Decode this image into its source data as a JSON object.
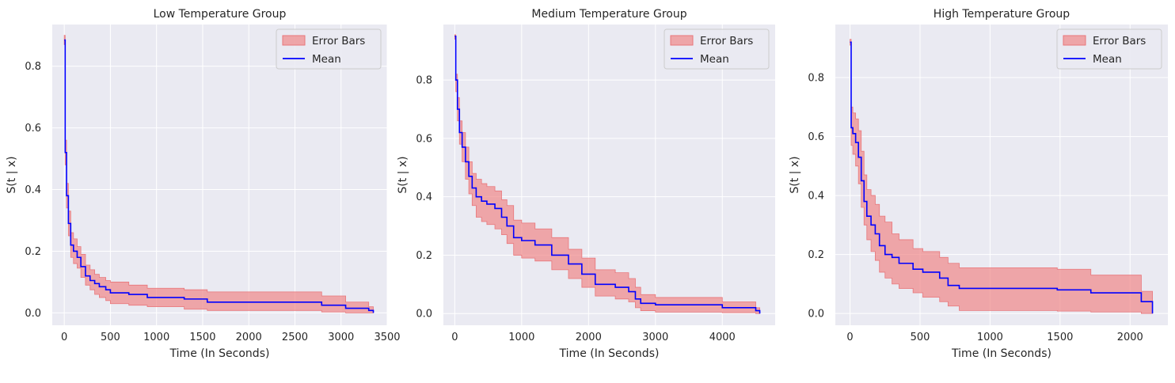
{
  "style": {
    "plot_background": "#eaeaf2",
    "grid_color": "#ffffff",
    "band_fill": "#f08080",
    "band_stroke": "#e8767a",
    "mean_color": "#0000ff"
  },
  "chart_data": [
    {
      "type": "line",
      "title": "Low Temperature Group",
      "xlabel": "Time (In Seconds)",
      "ylabel": "S(t | x)",
      "xlim": [
        -130,
        3500
      ],
      "ylim": [
        -0.04,
        0.935
      ],
      "xticks": [
        0,
        500,
        1000,
        1500,
        2000,
        2500,
        3000,
        3500
      ],
      "yticks": [
        0.0,
        0.2,
        0.4,
        0.6,
        0.8
      ],
      "ytick_labels": [
        "0.0",
        "0.2",
        "0.4",
        "0.6",
        "0.8"
      ],
      "grid": true,
      "legend": {
        "placement": "top-right",
        "entries": [
          "Error Bars",
          "Mean"
        ]
      },
      "series": [
        {
          "name": "Mean",
          "x": [
            0,
            10,
            25,
            45,
            70,
            100,
            140,
            180,
            230,
            280,
            330,
            380,
            450,
            500,
            700,
            900,
            1300,
            1550,
            2790,
            3050,
            3300,
            3350
          ],
          "y": [
            0.885,
            0.52,
            0.38,
            0.29,
            0.22,
            0.2,
            0.18,
            0.15,
            0.12,
            0.105,
            0.095,
            0.085,
            0.075,
            0.065,
            0.06,
            0.05,
            0.045,
            0.035,
            0.025,
            0.015,
            0.008,
            0.0
          ]
        },
        {
          "name": "Error Bars",
          "x": [
            0,
            10,
            25,
            45,
            70,
            100,
            140,
            180,
            230,
            280,
            330,
            380,
            450,
            500,
            700,
            900,
            1300,
            1550,
            2790,
            3050,
            3300,
            3350
          ],
          "upper": [
            0.9,
            0.56,
            0.42,
            0.33,
            0.26,
            0.24,
            0.215,
            0.19,
            0.155,
            0.14,
            0.125,
            0.115,
            0.105,
            0.1,
            0.09,
            0.08,
            0.075,
            0.068,
            0.055,
            0.035,
            0.02,
            0.01
          ],
          "lower": [
            0.87,
            0.48,
            0.34,
            0.25,
            0.18,
            0.16,
            0.145,
            0.115,
            0.09,
            0.075,
            0.06,
            0.05,
            0.04,
            0.03,
            0.025,
            0.02,
            0.012,
            0.008,
            0.003,
            0.0,
            0.0,
            0.0
          ]
        }
      ]
    },
    {
      "type": "line",
      "title": "Medium Temperature Group",
      "xlabel": "Time (In Seconds)",
      "ylabel": "S(t | x)",
      "xlim": [
        -170,
        4790
      ],
      "ylim": [
        -0.04,
        0.99
      ],
      "xticks": [
        0,
        1000,
        2000,
        3000,
        4000
      ],
      "yticks": [
        0.0,
        0.2,
        0.4,
        0.6,
        0.8
      ],
      "ytick_labels": [
        "0.0",
        "0.2",
        "0.4",
        "0.6",
        "0.8"
      ],
      "grid": true,
      "legend": {
        "placement": "top-right",
        "entries": [
          "Error Bars",
          "Mean"
        ]
      },
      "series": [
        {
          "name": "Mean",
          "x": [
            0,
            15,
            40,
            70,
            110,
            160,
            210,
            260,
            320,
            400,
            480,
            600,
            700,
            780,
            880,
            1000,
            1200,
            1450,
            1700,
            1900,
            2100,
            2400,
            2600,
            2700,
            2780,
            3000,
            4000,
            4500,
            4560
          ],
          "y": [
            0.95,
            0.8,
            0.7,
            0.62,
            0.57,
            0.52,
            0.47,
            0.43,
            0.4,
            0.385,
            0.375,
            0.36,
            0.33,
            0.3,
            0.26,
            0.25,
            0.235,
            0.2,
            0.17,
            0.135,
            0.1,
            0.09,
            0.075,
            0.05,
            0.035,
            0.03,
            0.02,
            0.01,
            0.0
          ]
        },
        {
          "name": "Error Bars",
          "x": [
            0,
            15,
            40,
            70,
            110,
            160,
            210,
            260,
            320,
            400,
            480,
            600,
            700,
            780,
            880,
            1000,
            1200,
            1450,
            1700,
            1900,
            2100,
            2400,
            2600,
            2700,
            2780,
            3000,
            4000,
            4500,
            4560
          ],
          "upper": [
            0.955,
            0.82,
            0.74,
            0.66,
            0.62,
            0.57,
            0.52,
            0.48,
            0.46,
            0.445,
            0.435,
            0.42,
            0.39,
            0.37,
            0.32,
            0.31,
            0.29,
            0.26,
            0.22,
            0.19,
            0.15,
            0.14,
            0.12,
            0.09,
            0.065,
            0.055,
            0.04,
            0.02,
            0.01
          ],
          "lower": [
            0.94,
            0.76,
            0.66,
            0.58,
            0.52,
            0.46,
            0.41,
            0.37,
            0.33,
            0.315,
            0.305,
            0.29,
            0.27,
            0.24,
            0.2,
            0.19,
            0.18,
            0.15,
            0.12,
            0.09,
            0.06,
            0.05,
            0.04,
            0.02,
            0.01,
            0.005,
            0.003,
            0.0,
            0.0
          ]
        }
      ]
    },
    {
      "type": "line",
      "title": "High Temperature Group",
      "xlabel": "Time (In Seconds)",
      "ylabel": "S(t | x)",
      "xlim": [
        -105,
        2270
      ],
      "ylim": [
        -0.04,
        0.98
      ],
      "xticks": [
        0,
        500,
        1000,
        1500,
        2000
      ],
      "yticks": [
        0.0,
        0.2,
        0.4,
        0.6,
        0.8
      ],
      "ytick_labels": [
        "0.0",
        "0.2",
        "0.4",
        "0.6",
        "0.8"
      ],
      "grid": true,
      "legend": {
        "placement": "top-right",
        "entries": [
          "Error Bars",
          "Mean"
        ]
      },
      "series": [
        {
          "name": "Mean",
          "x": [
            0,
            8,
            20,
            40,
            60,
            80,
            100,
            120,
            150,
            180,
            210,
            250,
            300,
            350,
            450,
            520,
            640,
            700,
            780,
            1480,
            1720,
            2080,
            2160
          ],
          "y": [
            0.92,
            0.63,
            0.61,
            0.58,
            0.53,
            0.45,
            0.38,
            0.33,
            0.3,
            0.27,
            0.23,
            0.2,
            0.19,
            0.17,
            0.15,
            0.14,
            0.12,
            0.095,
            0.085,
            0.08,
            0.07,
            0.04,
            0.0
          ]
        },
        {
          "name": "Error Bars",
          "x": [
            0,
            8,
            20,
            40,
            60,
            80,
            100,
            120,
            150,
            180,
            210,
            250,
            300,
            350,
            450,
            520,
            640,
            700,
            780,
            1480,
            1720,
            2080,
            2160
          ],
          "upper": [
            0.93,
            0.7,
            0.68,
            0.66,
            0.62,
            0.55,
            0.47,
            0.42,
            0.4,
            0.37,
            0.33,
            0.31,
            0.27,
            0.25,
            0.22,
            0.21,
            0.19,
            0.17,
            0.155,
            0.15,
            0.13,
            0.075,
            0.0
          ],
          "lower": [
            0.91,
            0.57,
            0.54,
            0.5,
            0.44,
            0.36,
            0.3,
            0.25,
            0.21,
            0.18,
            0.14,
            0.12,
            0.1,
            0.085,
            0.07,
            0.055,
            0.04,
            0.025,
            0.01,
            0.008,
            0.005,
            0.0,
            0.0
          ]
        }
      ]
    }
  ]
}
